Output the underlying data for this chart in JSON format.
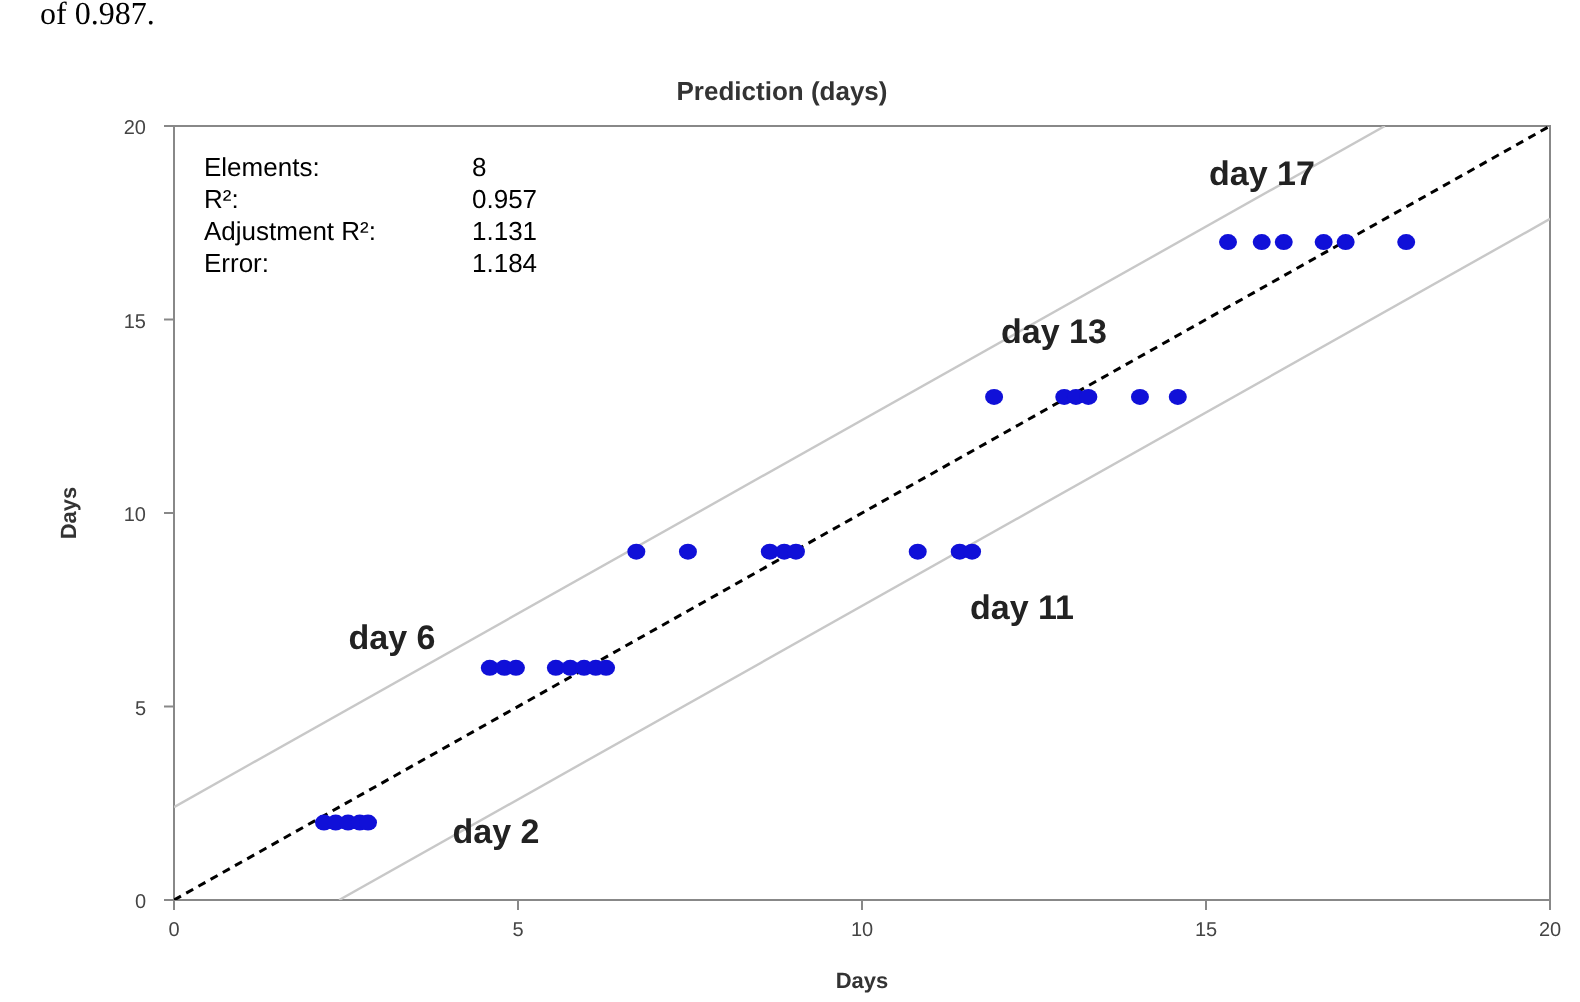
{
  "chart_data": {
    "type": "scatter",
    "title": "Prediction (days)",
    "xlabel": "Days",
    "ylabel": "Days",
    "xlim": [
      0,
      20
    ],
    "ylim": [
      0,
      20
    ],
    "xticks": [
      0,
      5,
      10,
      15,
      20
    ],
    "yticks": [
      0,
      5,
      10,
      15,
      20
    ],
    "grid": false,
    "series": [
      {
        "type": "line",
        "color": "#c8c8c8",
        "line_style": "solid",
        "marker": "none",
        "x": [
          0,
          17.6
        ],
        "values": [
          2.4,
          20
        ]
      },
      {
        "type": "line",
        "color": "#c8c8c8",
        "line_style": "solid",
        "marker": "none",
        "x": [
          2.4,
          20
        ],
        "values": [
          0,
          17.6
        ]
      },
      {
        "type": "line",
        "color": "#000000",
        "line_style": "dashed",
        "marker": "none",
        "x": [
          0,
          20
        ],
        "values": [
          0,
          20
        ]
      },
      {
        "color": "#1010d8",
        "marker": "circle",
        "x": [
          2.18,
          2.35,
          2.53,
          2.7,
          2.82,
          4.59,
          4.8,
          4.97,
          5.55,
          5.76,
          5.96,
          6.13,
          6.28,
          6.72,
          7.47,
          8.66,
          8.87,
          9.04,
          10.81,
          11.42,
          11.6,
          11.92,
          12.94,
          13.11,
          13.29,
          14.04,
          14.59,
          15.32,
          15.81,
          16.13,
          16.71,
          17.03,
          17.91
        ],
        "values": [
          2,
          2,
          2,
          2,
          2,
          6,
          6,
          6,
          6,
          6,
          6,
          6,
          6,
          9,
          9,
          9,
          9,
          9,
          9,
          9,
          9,
          13,
          13,
          13,
          13,
          13,
          13,
          17,
          17,
          17,
          17,
          17,
          17
        ]
      }
    ],
    "annotations": [
      "of 0.987.",
      "Elements: 8",
      "R²: 0.957",
      "Adjustment R²: 1.131",
      "Error: 1.184",
      "day 2",
      "day 6",
      "day 11",
      "day 13",
      "day 17"
    ]
  }
}
